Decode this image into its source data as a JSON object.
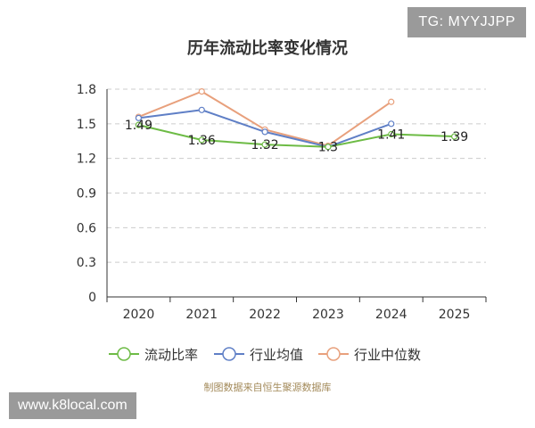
{
  "watermark_top": "TG: MYYJJPP",
  "watermark_bottom": "www.k8local.com",
  "source": "制图数据来自恒生聚源数据库",
  "chart_data": {
    "type": "line",
    "title": "历年流动比率变化情况",
    "categories": [
      "2020",
      "2021",
      "2022",
      "2023",
      "2024",
      "2025"
    ],
    "y_ticks": [
      "0",
      "0.3",
      "0.6",
      "0.9",
      "1.2",
      "1.5",
      "1.8"
    ],
    "ylim": [
      0,
      1.8
    ],
    "grid": true,
    "legend_position": "bottom",
    "series": [
      {
        "name": "流动比率",
        "color": "#6dbb45",
        "values": [
          1.49,
          1.36,
          1.32,
          1.3,
          1.41,
          1.39
        ],
        "labels": [
          "1.49",
          "1.36",
          "1.32",
          "1.3",
          "1.41",
          "1.39"
        ]
      },
      {
        "name": "行业均值",
        "color": "#5f7fc6",
        "values": [
          1.55,
          1.62,
          1.43,
          1.3,
          1.5,
          null
        ]
      },
      {
        "name": "行业中位数",
        "color": "#e8a07c",
        "values": [
          1.56,
          1.78,
          1.45,
          1.31,
          1.69,
          null
        ]
      }
    ]
  }
}
